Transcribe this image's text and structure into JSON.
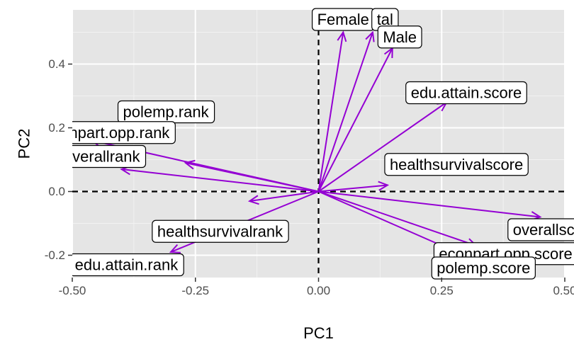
{
  "chart_data": {
    "type": "biplot",
    "xlabel": "PC1",
    "ylabel": "PC2",
    "xlim": [
      -0.5,
      0.5
    ],
    "ylim": [
      -0.27,
      0.57
    ],
    "x_ticks": [
      {
        "value": -0.5,
        "label": "-0.50"
      },
      {
        "value": -0.25,
        "label": "-0.25"
      },
      {
        "value": 0.0,
        "label": "0.00"
      },
      {
        "value": 0.25,
        "label": "0.25"
      },
      {
        "value": 0.5,
        "label": "0.50"
      }
    ],
    "y_ticks": [
      {
        "value": -0.2,
        "label": "-0.2"
      },
      {
        "value": 0.0,
        "label": "0.0"
      },
      {
        "value": 0.2,
        "label": "0.2"
      },
      {
        "value": 0.4,
        "label": "0.4"
      }
    ],
    "grid": true,
    "reference_lines": {
      "x": 0,
      "y": 0,
      "style": "dashed"
    },
    "arrow_color": "#9400D3",
    "panel_background": "#e5e5e5",
    "variables": [
      {
        "name": "Female",
        "x": 0.05,
        "y": 0.5,
        "label_x": 0.05,
        "label_y": 0.54
      },
      {
        "name": "tal",
        "x": 0.11,
        "y": 0.5,
        "label_x": 0.135,
        "label_y": 0.54
      },
      {
        "name": "Male",
        "x": 0.15,
        "y": 0.45,
        "label_x": 0.165,
        "label_y": 0.485
      },
      {
        "name": "edu.attain.score",
        "x": 0.26,
        "y": 0.28,
        "label_x": 0.3,
        "label_y": 0.31
      },
      {
        "name": "healthsurvivalscore",
        "x": 0.14,
        "y": 0.02,
        "label_x": 0.28,
        "label_y": 0.085
      },
      {
        "name": "polemp.rank",
        "x": -0.27,
        "y": 0.09,
        "label_x": -0.31,
        "label_y": 0.25
      },
      {
        "name": "econpart.opp.rank",
        "x": -0.46,
        "y": 0.16,
        "label_x": -0.43,
        "label_y": 0.185
      },
      {
        "name": "overallrank",
        "x": -0.4,
        "y": 0.07,
        "label_x": -0.44,
        "label_y": 0.11
      },
      {
        "name": "healthsurvivalrank",
        "x": -0.14,
        "y": -0.03,
        "label_x": -0.2,
        "label_y": -0.125
      },
      {
        "name": "edu.attain.rank",
        "x": -0.3,
        "y": -0.19,
        "label_x": -0.39,
        "label_y": -0.23
      },
      {
        "name": "overallscore",
        "x": 0.45,
        "y": -0.08,
        "label_x": 0.48,
        "label_y": -0.12
      },
      {
        "name": "econpart.opp.score",
        "x": 0.32,
        "y": -0.17,
        "label_x": 0.38,
        "label_y": -0.195
      },
      {
        "name": "polemp.score",
        "x": 0.28,
        "y": -0.19,
        "label_x": 0.335,
        "label_y": -0.24
      }
    ]
  }
}
